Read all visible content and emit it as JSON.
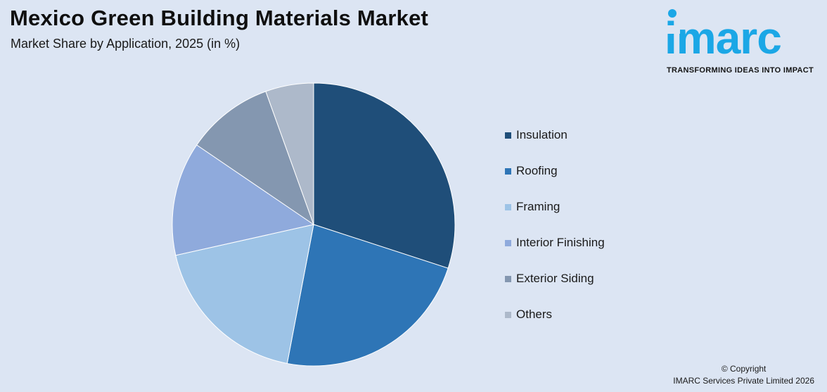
{
  "header": {
    "title": "Mexico Green Building Materials Market",
    "subtitle": "Market Share by Application, 2025 (in %)"
  },
  "logo": {
    "wordmark": "imarc",
    "tagline": "TRANSFORMING IDEAS INTO IMPACT",
    "color": "#1ba7e6"
  },
  "chart_data": {
    "type": "pie",
    "title": "Mexico Green Building Materials Market",
    "subtitle": "Market Share by Application, 2025 (in %)",
    "categories": [
      "Insulation",
      "Roofing",
      "Framing",
      "Interior Finishing",
      "Exterior Siding",
      "Others"
    ],
    "values": [
      30,
      23,
      18.5,
      13,
      10,
      5.5
    ],
    "colors": [
      "#1f4e79",
      "#2e75b6",
      "#9dc3e6",
      "#8faadc",
      "#8497b0",
      "#adb9ca"
    ],
    "start_angle_deg": 0,
    "direction": "clockwise",
    "legend_position": "right"
  },
  "footer": {
    "copyright_line1": "© Copyright",
    "copyright_line2": "IMARC Services Private Limited 2026"
  }
}
